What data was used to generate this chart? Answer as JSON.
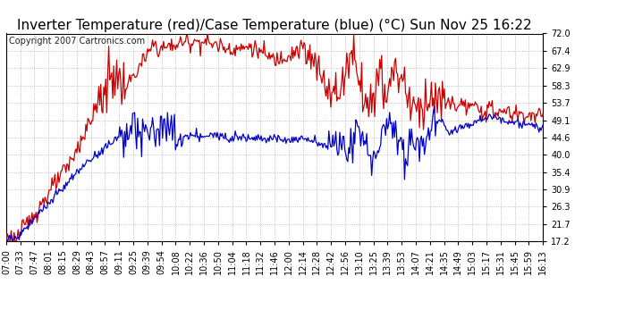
{
  "title": "Inverter Temperature (red)/Case Temperature (blue) (°C) Sun Nov 25 16:22",
  "copyright": "Copyright 2007 Cartronics.com",
  "bg_color": "#ffffff",
  "plot_bg_color": "#ffffff",
  "grid_color": "#b0b0b0",
  "line_red_color": "#cc0000",
  "line_blue_color": "#0000cc",
  "yticks": [
    17.2,
    21.7,
    26.3,
    30.9,
    35.4,
    40.0,
    44.6,
    49.1,
    53.7,
    58.3,
    62.9,
    67.4,
    72.0
  ],
  "ylim": [
    17.2,
    72.0
  ],
  "xtick_labels": [
    "07:00",
    "07:33",
    "07:47",
    "08:01",
    "08:15",
    "08:29",
    "08:43",
    "08:57",
    "09:11",
    "09:25",
    "09:39",
    "09:54",
    "10:08",
    "10:22",
    "10:36",
    "10:50",
    "11:04",
    "11:18",
    "11:32",
    "11:46",
    "12:00",
    "12:14",
    "12:28",
    "12:42",
    "12:56",
    "13:10",
    "13:25",
    "13:39",
    "13:53",
    "14:07",
    "14:21",
    "14:35",
    "14:49",
    "15:03",
    "15:17",
    "15:31",
    "15:45",
    "15:59",
    "16:13"
  ],
  "title_fontsize": 11,
  "copyright_fontsize": 7,
  "tick_fontsize": 7
}
